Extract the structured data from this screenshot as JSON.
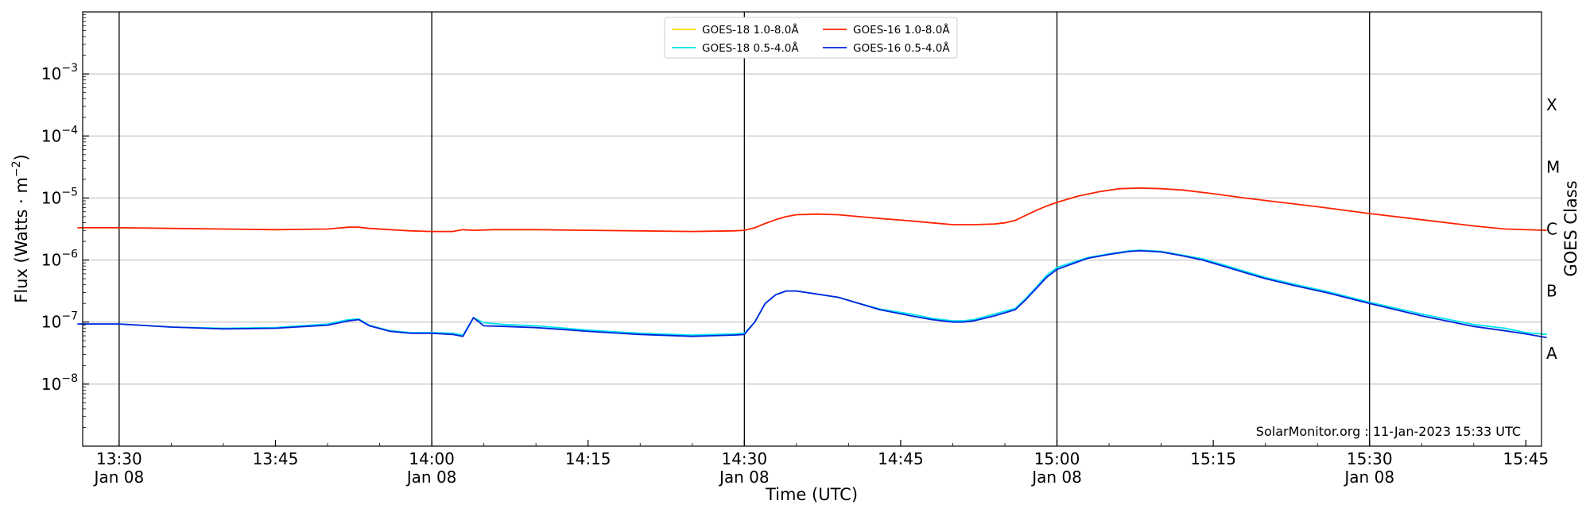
{
  "chart_data": {
    "type": "line",
    "xlabel": "Time (UTC)",
    "ylabel": "Flux (Watts · m",
    "ylabel_sup": "−2",
    "ylabel_close": ")",
    "right_label": "GOES Class",
    "annotation": "SolarMonitor.org : 11-Jan-2023 15:33 UTC",
    "x_unit": "minutes after 13:00 UTC, Jan 08",
    "xlim": [
      26.5,
      46.5
    ],
    "y_scale": "log",
    "ylim_exp": [
      -9,
      -2
    ],
    "y_ticks": [
      {
        "exp": -8,
        "base": "10",
        "sup": "−8"
      },
      {
        "exp": -7,
        "base": "10",
        "sup": "−7"
      },
      {
        "exp": -6,
        "base": "10",
        "sup": "−6"
      },
      {
        "exp": -5,
        "base": "10",
        "sup": "−5"
      },
      {
        "exp": -4,
        "base": "10",
        "sup": "−4"
      },
      {
        "exp": -3,
        "base": "10",
        "sup": "−3"
      }
    ],
    "x_ticks": [
      {
        "t": 30,
        "time": "13:30",
        "date": "Jan 08"
      },
      {
        "t": 45,
        "time": "13:45",
        "date": ""
      },
      {
        "t": 60,
        "time": "14:00",
        "date": "Jan 08"
      },
      {
        "t": 75,
        "time": "14:15",
        "date": ""
      },
      {
        "t": 90,
        "time": "14:30",
        "date": "Jan 08"
      },
      {
        "t": 105,
        "time": "14:45",
        "date": ""
      },
      {
        "t": 120,
        "time": "15:00",
        "date": "Jan 08"
      },
      {
        "t": 135,
        "time": "15:15",
        "date": ""
      },
      {
        "t": 150,
        "time": "15:30",
        "date": "Jan 08"
      },
      {
        "t": 165,
        "time": "15:45",
        "date": ""
      }
    ],
    "vlines": [
      30,
      60,
      90,
      120,
      150
    ],
    "classes": [
      {
        "label": "A",
        "exp": -7.5
      },
      {
        "label": "B",
        "exp": -6.5
      },
      {
        "label": "C",
        "exp": -5.5
      },
      {
        "label": "M",
        "exp": -4.5
      },
      {
        "label": "X",
        "exp": -3.5
      }
    ],
    "grid": "horizontal",
    "legend_position": "top-center",
    "series": [
      {
        "name": "GOES-18 1.0-8.0Å",
        "color": "#ffd700",
        "points": []
      },
      {
        "name": "GOES-18 0.5-4.0Å",
        "color": "#00e5ee",
        "points": [
          [
            26,
            -7.03
          ],
          [
            30,
            -7.03
          ],
          [
            35,
            -7.08
          ],
          [
            40,
            -7.1
          ],
          [
            45,
            -7.09
          ],
          [
            50,
            -7.03
          ],
          [
            52,
            -6.96
          ],
          [
            53,
            -6.95
          ],
          [
            54,
            -7.05
          ],
          [
            56,
            -7.14
          ],
          [
            58,
            -7.17
          ],
          [
            60,
            -7.17
          ],
          [
            62,
            -7.18
          ],
          [
            63,
            -7.21
          ],
          [
            64,
            -6.93
          ],
          [
            65,
            -7.01
          ],
          [
            67,
            -7.04
          ],
          [
            70,
            -7.06
          ],
          [
            75,
            -7.13
          ],
          [
            80,
            -7.18
          ],
          [
            85,
            -7.21
          ],
          [
            89,
            -7.19
          ],
          [
            90,
            -7.18
          ],
          [
            91,
            -7.0
          ],
          [
            92,
            -6.7
          ],
          [
            93,
            -6.56
          ],
          [
            94,
            -6.5
          ],
          [
            95,
            -6.5
          ],
          [
            97,
            -6.55
          ],
          [
            99,
            -6.6
          ],
          [
            101,
            -6.7
          ],
          [
            103,
            -6.79
          ],
          [
            106,
            -6.87
          ],
          [
            108,
            -6.94
          ],
          [
            110,
            -6.98
          ],
          [
            111,
            -6.98
          ],
          [
            112,
            -6.96
          ],
          [
            114,
            -6.87
          ],
          [
            116,
            -6.78
          ],
          [
            117,
            -6.62
          ],
          [
            118,
            -6.44
          ],
          [
            119,
            -6.25
          ],
          [
            120,
            -6.12
          ],
          [
            122,
            -6.01
          ],
          [
            123,
            -5.96
          ],
          [
            125,
            -5.9
          ],
          [
            127,
            -5.85
          ],
          [
            128,
            -5.84
          ],
          [
            130,
            -5.86
          ],
          [
            132,
            -5.92
          ],
          [
            134,
            -5.98
          ],
          [
            136,
            -6.08
          ],
          [
            138,
            -6.18
          ],
          [
            140,
            -6.28
          ],
          [
            143,
            -6.4
          ],
          [
            146,
            -6.51
          ],
          [
            150,
            -6.68
          ],
          [
            155,
            -6.87
          ],
          [
            160,
            -7.04
          ],
          [
            163,
            -7.1
          ],
          [
            165,
            -7.17
          ],
          [
            167,
            -7.2
          ]
        ]
      },
      {
        "name": "GOES-16 1.0-8.0Å",
        "color": "#ff2200",
        "points": [
          [
            26,
            -5.48
          ],
          [
            30,
            -5.48
          ],
          [
            35,
            -5.49
          ],
          [
            40,
            -5.5
          ],
          [
            45,
            -5.51
          ],
          [
            50,
            -5.5
          ],
          [
            52,
            -5.47
          ],
          [
            53,
            -5.47
          ],
          [
            54,
            -5.49
          ],
          [
            56,
            -5.51
          ],
          [
            58,
            -5.53
          ],
          [
            60,
            -5.54
          ],
          [
            62,
            -5.54
          ],
          [
            63,
            -5.51
          ],
          [
            64,
            -5.52
          ],
          [
            66,
            -5.51
          ],
          [
            70,
            -5.51
          ],
          [
            75,
            -5.52
          ],
          [
            80,
            -5.53
          ],
          [
            85,
            -5.54
          ],
          [
            89,
            -5.53
          ],
          [
            90,
            -5.52
          ],
          [
            91,
            -5.48
          ],
          [
            92,
            -5.41
          ],
          [
            93,
            -5.35
          ],
          [
            94,
            -5.3
          ],
          [
            95,
            -5.27
          ],
          [
            97,
            -5.26
          ],
          [
            99,
            -5.27
          ],
          [
            101,
            -5.3
          ],
          [
            103,
            -5.33
          ],
          [
            106,
            -5.37
          ],
          [
            108,
            -5.4
          ],
          [
            110,
            -5.43
          ],
          [
            112,
            -5.43
          ],
          [
            114,
            -5.42
          ],
          [
            115,
            -5.4
          ],
          [
            116,
            -5.36
          ],
          [
            117,
            -5.28
          ],
          [
            118,
            -5.2
          ],
          [
            119,
            -5.13
          ],
          [
            120,
            -5.07
          ],
          [
            122,
            -4.97
          ],
          [
            124,
            -4.9
          ],
          [
            126,
            -4.85
          ],
          [
            128,
            -4.84
          ],
          [
            130,
            -4.85
          ],
          [
            132,
            -4.87
          ],
          [
            135,
            -4.93
          ],
          [
            138,
            -5.0
          ],
          [
            141,
            -5.06
          ],
          [
            145,
            -5.14
          ],
          [
            150,
            -5.25
          ],
          [
            155,
            -5.35
          ],
          [
            160,
            -5.45
          ],
          [
            163,
            -5.5
          ],
          [
            167,
            -5.52
          ]
        ]
      },
      {
        "name": "GOES-16 0.5-4.0Å",
        "color": "#0022dd",
        "points": [
          [
            26,
            -7.03
          ],
          [
            30,
            -7.03
          ],
          [
            35,
            -7.08
          ],
          [
            40,
            -7.11
          ],
          [
            45,
            -7.1
          ],
          [
            50,
            -7.05
          ],
          [
            52,
            -6.98
          ],
          [
            53,
            -6.96
          ],
          [
            54,
            -7.06
          ],
          [
            56,
            -7.15
          ],
          [
            58,
            -7.18
          ],
          [
            60,
            -7.18
          ],
          [
            62,
            -7.2
          ],
          [
            63,
            -7.23
          ],
          [
            64,
            -6.93
          ],
          [
            65,
            -7.06
          ],
          [
            67,
            -7.07
          ],
          [
            70,
            -7.09
          ],
          [
            75,
            -7.15
          ],
          [
            80,
            -7.2
          ],
          [
            85,
            -7.23
          ],
          [
            89,
            -7.21
          ],
          [
            90,
            -7.2
          ],
          [
            91,
            -7.0
          ],
          [
            92,
            -6.7
          ],
          [
            93,
            -6.56
          ],
          [
            94,
            -6.5
          ],
          [
            95,
            -6.5
          ],
          [
            97,
            -6.55
          ],
          [
            99,
            -6.6
          ],
          [
            101,
            -6.7
          ],
          [
            103,
            -6.8
          ],
          [
            106,
            -6.9
          ],
          [
            108,
            -6.96
          ],
          [
            110,
            -7.0
          ],
          [
            111,
            -7.0
          ],
          [
            112,
            -6.98
          ],
          [
            114,
            -6.9
          ],
          [
            116,
            -6.8
          ],
          [
            117,
            -6.64
          ],
          [
            118,
            -6.46
          ],
          [
            119,
            -6.28
          ],
          [
            120,
            -6.15
          ],
          [
            122,
            -6.03
          ],
          [
            123,
            -5.97
          ],
          [
            125,
            -5.91
          ],
          [
            127,
            -5.86
          ],
          [
            128,
            -5.85
          ],
          [
            130,
            -5.87
          ],
          [
            132,
            -5.93
          ],
          [
            134,
            -6.0
          ],
          [
            136,
            -6.1
          ],
          [
            138,
            -6.2
          ],
          [
            140,
            -6.3
          ],
          [
            143,
            -6.42
          ],
          [
            146,
            -6.53
          ],
          [
            150,
            -6.7
          ],
          [
            155,
            -6.9
          ],
          [
            160,
            -7.07
          ],
          [
            163,
            -7.14
          ],
          [
            165,
            -7.19
          ],
          [
            167,
            -7.25
          ]
        ]
      }
    ]
  }
}
